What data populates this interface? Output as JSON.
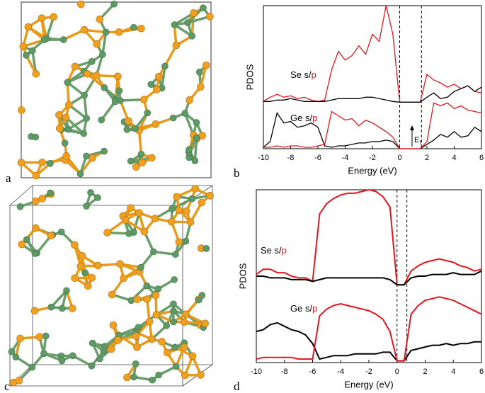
{
  "panels": [
    "a",
    "b",
    "c",
    "d"
  ],
  "chart_data": [
    {
      "type": "line",
      "xlabel": "Energy (eV)",
      "ylabel": "PDOS",
      "x": [
        -10,
        -9.5,
        -9,
        -8.5,
        -8,
        -7.5,
        -7,
        -6.5,
        -6,
        -5.5,
        -5,
        -4.5,
        -4,
        -3.5,
        -3,
        -2.5,
        -2,
        -1.5,
        -1,
        -0.5,
        0,
        0.5,
        1,
        1.5,
        2,
        2.5,
        3,
        3.5,
        4,
        4.5,
        5,
        5.5,
        6
      ],
      "xlim": [
        -10,
        6
      ],
      "xticks": [
        -10,
        -8,
        -6,
        -4,
        -2,
        0,
        2,
        4,
        6
      ],
      "ylim": [
        0,
        10
      ],
      "vlines": [
        0,
        1.6
      ],
      "series": [
        {
          "color": "#e8141c",
          "values": [
            3.3,
            3.6,
            3.8,
            3.6,
            3.7,
            3.5,
            3.6,
            3.4,
            3.3,
            3.4,
            5.5,
            6.8,
            6.2,
            6.5,
            7.2,
            6.6,
            8.0,
            7.5,
            10,
            8.0,
            3.25,
            3.25,
            3.25,
            3.25,
            5.2,
            4.8,
            4.6,
            4.3,
            4.5,
            4.2,
            4.4,
            4.0,
            3.9
          ]
        },
        {
          "color": "#000000",
          "values": [
            3.3,
            3.3,
            3.4,
            3.4,
            3.5,
            3.4,
            3.3,
            3.3,
            3.3,
            3.3,
            3.4,
            3.5,
            3.5,
            3.5,
            3.5,
            3.6,
            3.6,
            3.5,
            3.4,
            3.3,
            3.25,
            3.25,
            3.25,
            3.25,
            3.6,
            3.9,
            3.5,
            3.6,
            4.0,
            4.2,
            4.4,
            4.0,
            4.3
          ]
        },
        {
          "color": "#000000",
          "values": [
            0.1,
            0.5,
            2.5,
            1.8,
            1.9,
            1.5,
            1.6,
            1.8,
            1.5,
            0.2,
            0.1,
            0.2,
            0.2,
            0.3,
            0.4,
            0.4,
            0.5,
            0.5,
            0.6,
            0.5,
            0,
            0,
            0,
            0,
            0.3,
            0.6,
            1.0,
            0.8,
            1.2,
            0.8,
            0.9,
            1.5,
            1.2
          ]
        },
        {
          "color": "#e8141c",
          "values": [
            0.1,
            0.1,
            0.2,
            0.1,
            0.2,
            0.2,
            0.1,
            0.1,
            0.2,
            0.3,
            2.6,
            2.3,
            2.0,
            2.1,
            1.6,
            2.0,
            1.8,
            1.5,
            1.2,
            0.8,
            0,
            0,
            0,
            0,
            0.5,
            3.2,
            3.0,
            3.2,
            2.8,
            3.0,
            2.7,
            2.6,
            2.5
          ]
        }
      ],
      "annotations": {
        "se": [
          "Se s/",
          "p"
        ],
        "ge": [
          "Ge s/",
          "p"
        ],
        "fermi": [
          "E",
          "f"
        ]
      }
    },
    {
      "type": "line",
      "xlabel": "Energy (eV)",
      "ylabel": "PDOS",
      "x": [
        -10,
        -9.5,
        -9,
        -8.5,
        -8,
        -7.5,
        -7,
        -6.5,
        -6,
        -5.5,
        -5,
        -4.5,
        -4,
        -3.5,
        -3,
        -2.5,
        -2,
        -1.5,
        -1,
        -0.5,
        0,
        0.5,
        1,
        1.5,
        2,
        2.5,
        3,
        3.5,
        4,
        4.5,
        5,
        5.5,
        6
      ],
      "xlim": [
        -10,
        6
      ],
      "xticks": [
        -10,
        -8,
        -6,
        -4,
        -2,
        0,
        2,
        4,
        6
      ],
      "ylim": [
        0,
        10
      ],
      "vlines": [
        0,
        0.7
      ],
      "series": [
        {
          "color": "#e8141c",
          "values": [
            5.1,
            5.4,
            5.4,
            5.2,
            5.2,
            5.0,
            4.9,
            4.9,
            4.7,
            8.6,
            9.2,
            9.5,
            9.7,
            9.8,
            9.8,
            9.9,
            10,
            9.9,
            9.6,
            9.0,
            4.5,
            4.5,
            5.3,
            5.6,
            5.8,
            5.9,
            6.0,
            5.9,
            5.8,
            5.6,
            5.5,
            5.3,
            5.4
          ]
        },
        {
          "color": "#000000",
          "values": [
            5.0,
            5.0,
            4.9,
            4.9,
            4.9,
            4.8,
            4.8,
            4.8,
            4.7,
            4.8,
            4.9,
            4.9,
            4.9,
            4.9,
            4.9,
            4.9,
            4.9,
            4.9,
            4.9,
            4.8,
            4.5,
            4.5,
            4.9,
            5.0,
            5.0,
            5.1,
            5.1,
            5.1,
            5.2,
            5.1,
            5.1,
            5.1,
            5.3
          ]
        },
        {
          "color": "#000000",
          "values": [
            1.8,
            1.9,
            2.2,
            2.3,
            2.1,
            1.9,
            1.8,
            1.6,
            1.1,
            0.2,
            0.3,
            0.4,
            0.4,
            0.4,
            0.5,
            0.5,
            0.5,
            0.5,
            0.6,
            0.6,
            0.1,
            0.1,
            0.7,
            0.8,
            0.9,
            1.0,
            1.0,
            1.1,
            1.0,
            1.1,
            1.1,
            1.2,
            1.2
          ]
        },
        {
          "color": "#e8141c",
          "values": [
            0.2,
            0.3,
            0.3,
            0.3,
            0.3,
            0.3,
            0.2,
            0.2,
            0.2,
            2.7,
            3.1,
            3.3,
            3.4,
            3.3,
            3.2,
            3.1,
            3.0,
            2.8,
            2.5,
            1.8,
            0.1,
            0.1,
            2.8,
            3.3,
            3.6,
            3.7,
            3.8,
            3.7,
            3.6,
            3.4,
            3.2,
            3.0,
            2.8
          ]
        }
      ],
      "annotations": {
        "se": [
          "Se s/",
          "p"
        ],
        "ge": [
          "Ge s/",
          "p"
        ]
      }
    }
  ]
}
